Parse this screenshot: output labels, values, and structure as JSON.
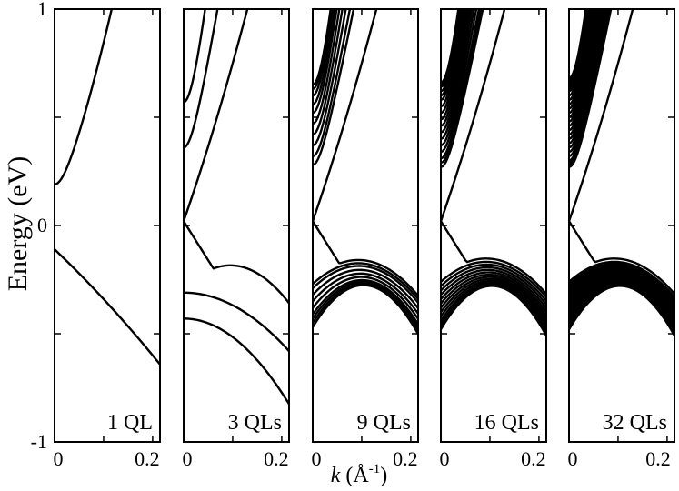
{
  "chart_data": {
    "type": "line",
    "ylabel": "Energy (eV)",
    "xlabel": {
      "var": "k",
      "unit_open": " (Å",
      "unit_exp": "-1",
      "unit_close": ")"
    },
    "ylim": [
      -1,
      1
    ],
    "xlim": [
      0,
      0.215
    ],
    "y_ticks": [
      -1,
      -0.5,
      0,
      0.5,
      1
    ],
    "y_tick_labels": [
      "-1",
      "0",
      "1"
    ],
    "x_ticks": [
      0,
      0.1,
      0.2
    ],
    "x_tick_labels": [
      "0",
      "0.2"
    ],
    "grid": false,
    "panels": [
      {
        "label": "1 QL",
        "conduction_bottoms": [
          0.19
        ],
        "valence_tops": [
          -0.11
        ]
      },
      {
        "label": "3 QLs",
        "conduction_bottoms": [
          0.03,
          0.36,
          0.57
        ],
        "valence_tops": [
          -0.02,
          -0.31,
          -0.43
        ]
      },
      {
        "label": "9 QLs",
        "conduction_bottoms": [
          0.02,
          0.28,
          0.32,
          0.37,
          0.42,
          0.47,
          0.52,
          0.56,
          0.6,
          0.63,
          0.65
        ],
        "valence_tops": [
          0.02,
          -0.27,
          -0.29,
          -0.32,
          -0.35,
          -0.38,
          -0.41,
          -0.43,
          -0.45,
          -0.47
        ]
      },
      {
        "label": "16 QLs",
        "conduction_bottoms": [
          0.02,
          0.27,
          0.29,
          0.31,
          0.34,
          0.37,
          0.4,
          0.43,
          0.46,
          0.49,
          0.52,
          0.55,
          0.58,
          0.6,
          0.62,
          0.64,
          0.65,
          0.66
        ],
        "valence_tops": [
          0.02,
          -0.26,
          -0.28,
          -0.3,
          -0.32,
          -0.34,
          -0.36,
          -0.38,
          -0.4,
          -0.42,
          -0.44,
          -0.45,
          -0.46,
          -0.47,
          -0.48
        ]
      },
      {
        "label": "32 QLs",
        "conduction_bottoms": [
          0.02,
          0.27,
          0.28,
          0.29,
          0.3,
          0.32,
          0.34,
          0.36,
          0.38,
          0.4,
          0.42,
          0.44,
          0.46,
          0.48,
          0.5,
          0.52,
          0.54,
          0.56,
          0.58,
          0.6,
          0.62,
          0.63,
          0.64,
          0.65,
          0.66,
          0.67,
          0.68
        ],
        "valence_tops": [
          0.02,
          -0.26,
          -0.27,
          -0.28,
          -0.29,
          -0.3,
          -0.31,
          -0.32,
          -0.33,
          -0.34,
          -0.35,
          -0.36,
          -0.37,
          -0.38,
          -0.39,
          -0.4,
          -0.41,
          -0.42,
          -0.43,
          -0.44,
          -0.45,
          -0.46,
          -0.47,
          -0.48
        ]
      }
    ]
  }
}
